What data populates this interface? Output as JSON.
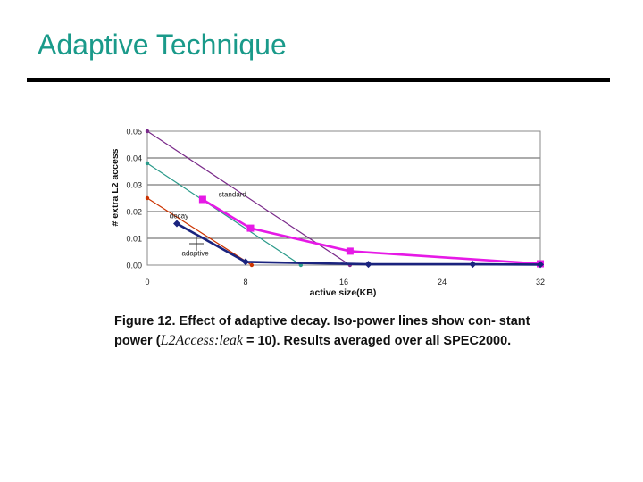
{
  "slide": {
    "title": "Adaptive Technique"
  },
  "caption": {
    "part1": "Figure 12. Effect of adaptive decay. Iso-power lines show con- stant power (",
    "math": "L2Access:leak",
    "part2": " = 10). Results averaged over all SPEC2000."
  },
  "colors": {
    "title": "#1a9a8a",
    "decay": "#1a237e",
    "standard": "#e619e6",
    "iso1": "#cc3300",
    "iso2": "#2a9a8a",
    "iso3": "#7a2a8a"
  },
  "chart_data": {
    "type": "line",
    "xlabel": "active size(KB)",
    "ylabel": "# extra L2 access",
    "x_ticks": [
      "0",
      "8",
      "16",
      "24",
      "32"
    ],
    "y_ticks": [
      "0.00",
      "0.01",
      "0.02",
      "0.03",
      "0.04",
      "0.05"
    ],
    "xlim": [
      0,
      32
    ],
    "ylim": [
      0,
      0.05
    ],
    "grid": true,
    "annotations": [
      {
        "text": "standard",
        "x": 5.8,
        "y": 0.0255
      },
      {
        "text": "decay",
        "x": 1.8,
        "y": 0.0175
      },
      {
        "text": "adaptive",
        "x": 2.8,
        "y": 0.0035
      }
    ],
    "series": [
      {
        "key": "decay",
        "color": "#1a237e",
        "marker": "diamond",
        "x": [
          2.4,
          8.0,
          18.0,
          26.5,
          32.0
        ],
        "y": [
          0.0155,
          0.0012,
          0.0003,
          0.0003,
          0.0002
        ]
      },
      {
        "key": "standard",
        "color": "#e619e6",
        "marker": "square",
        "x": [
          4.5,
          8.4,
          16.5,
          32.0
        ],
        "y": [
          0.0245,
          0.0138,
          0.0052,
          0.0005
        ]
      },
      {
        "key": "iso_1",
        "color": "#cc3300",
        "marker": "none",
        "x": [
          0,
          8.5
        ],
        "y": [
          0.025,
          0.0
        ]
      },
      {
        "key": "iso_2",
        "color": "#2a9a8a",
        "marker": "none",
        "x": [
          0,
          12.5
        ],
        "y": [
          0.038,
          0.0
        ]
      },
      {
        "key": "iso_3",
        "color": "#7a2a8a",
        "marker": "none",
        "x": [
          0,
          16.5
        ],
        "y": [
          0.05,
          0.0
        ]
      }
    ],
    "adaptive_point": {
      "x": 4.0,
      "y": 0.008
    }
  }
}
